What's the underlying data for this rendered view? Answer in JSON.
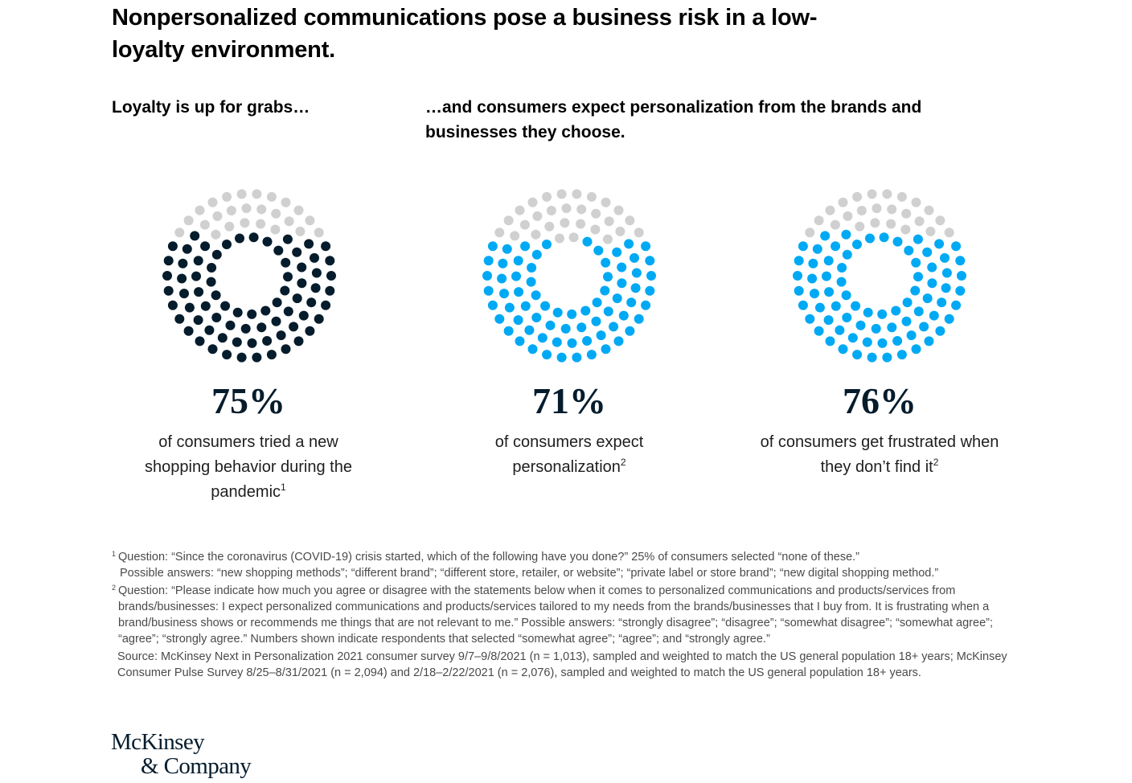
{
  "title": "Nonpersonalized communications pose a business risk in a low-loyalty environment.",
  "subhead_left": "Loyalty is up for grabs…",
  "subhead_right": "…and consumers expect personalization from the brands and businesses they choose.",
  "chart_data": [
    {
      "type": "dot-matrix",
      "total_dots": 100,
      "value": 75,
      "value_label": "75%",
      "description": "of consumers tried a new shopping behavior during the pandemic",
      "footnote_ref": "1",
      "color_filled": "#051c2c",
      "color_empty": "#d0d0d0"
    },
    {
      "type": "dot-matrix",
      "total_dots": 100,
      "value": 71,
      "value_label": "71%",
      "description": "of consumers expect personalization",
      "footnote_ref": "2",
      "color_filled": "#00a9f4",
      "color_empty": "#d0d0d0"
    },
    {
      "type": "dot-matrix",
      "total_dots": 100,
      "value": 76,
      "value_label": "76%",
      "description": "of consumers get frustrated when they don’t find it",
      "footnote_ref": "2",
      "color_filled": "#00a9f4",
      "color_empty": "#d0d0d0"
    }
  ],
  "footnotes": [
    {
      "num": "1",
      "text": "Question: “Since the coronavirus (COVID-19) crisis started, which of the following have you done?” 25% of consumers selected “none of these.”",
      "continued": "Possible answers: “new shopping methods”; “different brand”; “different store, retailer, or website”; “private label or store brand”; “new digital shopping method.”"
    },
    {
      "num": "2",
      "text": "Question: “Please indicate how much you agree or disagree with the statements below when it comes to personalized communications and products/services from brands/businesses: I expect personalized communications and products/services tailored to my needs from the brands/businesses that I buy from. It is frustrating when a brand/business shows or recommends me things that are not relevant to me.” Possible answers: “strongly disagree”; “disagree”; “somewhat disagree”; “somewhat agree”; “agree”; “strongly agree.” Numbers shown indicate respondents that selected “somewhat agree”; “agree”; and “strongly agree.”"
    }
  ],
  "source": "Source: McKinsey Next in Personalization 2021 consumer survey 9/7–9/8/2021 (n = 1,013), sampled and weighted to match the US general population 18+ years; McKinsey Consumer Pulse Survey 8/25–8/31/2021 (n = 2,094) and 2/18–2/22/2021 (n = 2,076), sampled and weighted to match the US general population 18+ years.",
  "logo": {
    "line1": "McKinsey",
    "line2": "& Company"
  }
}
